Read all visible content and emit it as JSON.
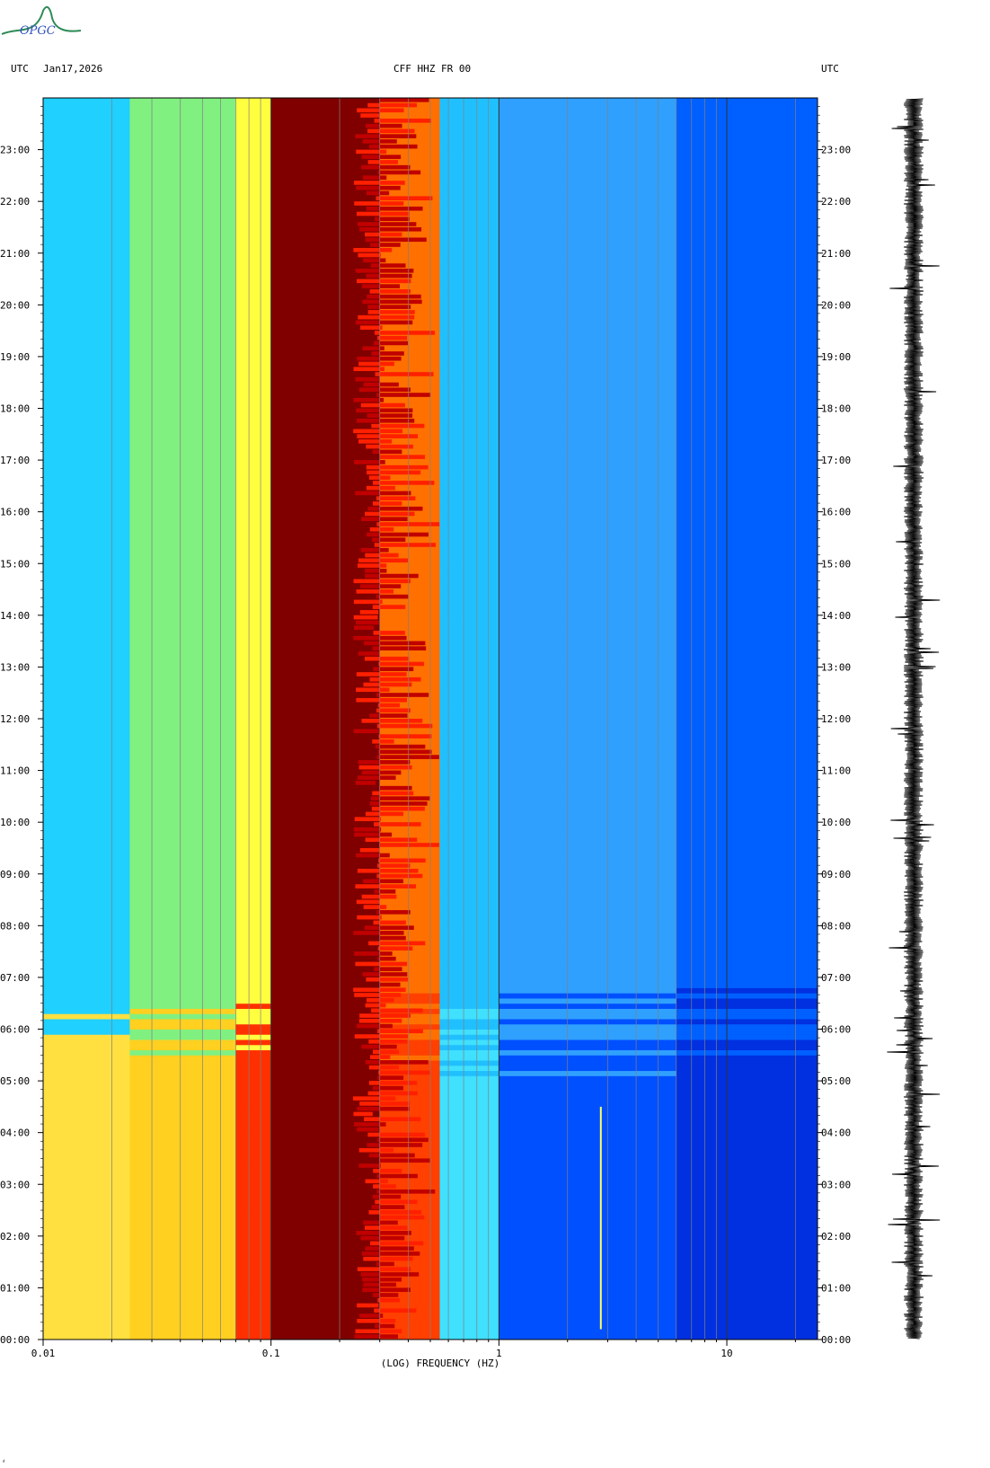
{
  "header": {
    "logo_text": "OPGC",
    "left_utc": "UTC",
    "date": "Jan17,2026",
    "station": "CFF HHZ FR 00",
    "right_utc": "UTC"
  },
  "corner_mark": "ᵈ",
  "chart_data": {
    "type": "heatmap",
    "title": "CFF HHZ FR 00",
    "xlabel": "(LOG) FREQUENCY (HZ)",
    "ylabel": "UTC",
    "x_scale": "log",
    "xlim": [
      0.01,
      25
    ],
    "ylim": [
      "00:00",
      "24:00"
    ],
    "x_ticks": [
      {
        "value": 0.01,
        "label": "0.01"
      },
      {
        "value": 0.1,
        "label": "0.1"
      },
      {
        "value": 1,
        "label": "1"
      },
      {
        "value": 10,
        "label": "10"
      }
    ],
    "y_ticks": [
      "00:00",
      "01:00",
      "02:00",
      "03:00",
      "04:00",
      "05:00",
      "06:00",
      "07:00",
      "08:00",
      "09:00",
      "10:00",
      "11:00",
      "12:00",
      "13:00",
      "14:00",
      "15:00",
      "16:00",
      "17:00",
      "18:00",
      "19:00",
      "20:00",
      "21:00",
      "22:00",
      "23:00"
    ],
    "colormap": [
      "#0000c0",
      "#0050ff",
      "#00c8ff",
      "#40f0c0",
      "#ffff40",
      "#ff9000",
      "#ff2000",
      "#800000"
    ],
    "bands": [
      {
        "f_from": 0.01,
        "f_to": 0.024,
        "color_night": "#ffe040",
        "color_day": "#20d0ff"
      },
      {
        "f_from": 0.024,
        "f_to": 0.07,
        "color_night": "#ffd020",
        "color_day": "#80f080"
      },
      {
        "f_from": 0.07,
        "f_to": 0.1,
        "color_night": "#ff3000",
        "color_day": "#ffff40"
      },
      {
        "f_from": 0.1,
        "f_to": 0.3,
        "color_night": "#800000",
        "color_day": "#800000"
      },
      {
        "f_from": 0.3,
        "f_to": 0.55,
        "color_night": "#ff4000",
        "color_day": "#ff7000"
      },
      {
        "f_from": 0.55,
        "f_to": 1.0,
        "color_night": "#40e0ff",
        "color_day": "#20c0ff"
      },
      {
        "f_from": 1.0,
        "f_to": 6.0,
        "color_night": "#0050ff",
        "color_day": "#30a0ff"
      },
      {
        "f_from": 6.0,
        "f_to": 25,
        "color_night": "#0030e0",
        "color_day": "#0060ff"
      }
    ],
    "tremor_line_hz": 2.8,
    "seismogram": {
      "time_start": "00:00",
      "time_end": "24:00"
    }
  }
}
